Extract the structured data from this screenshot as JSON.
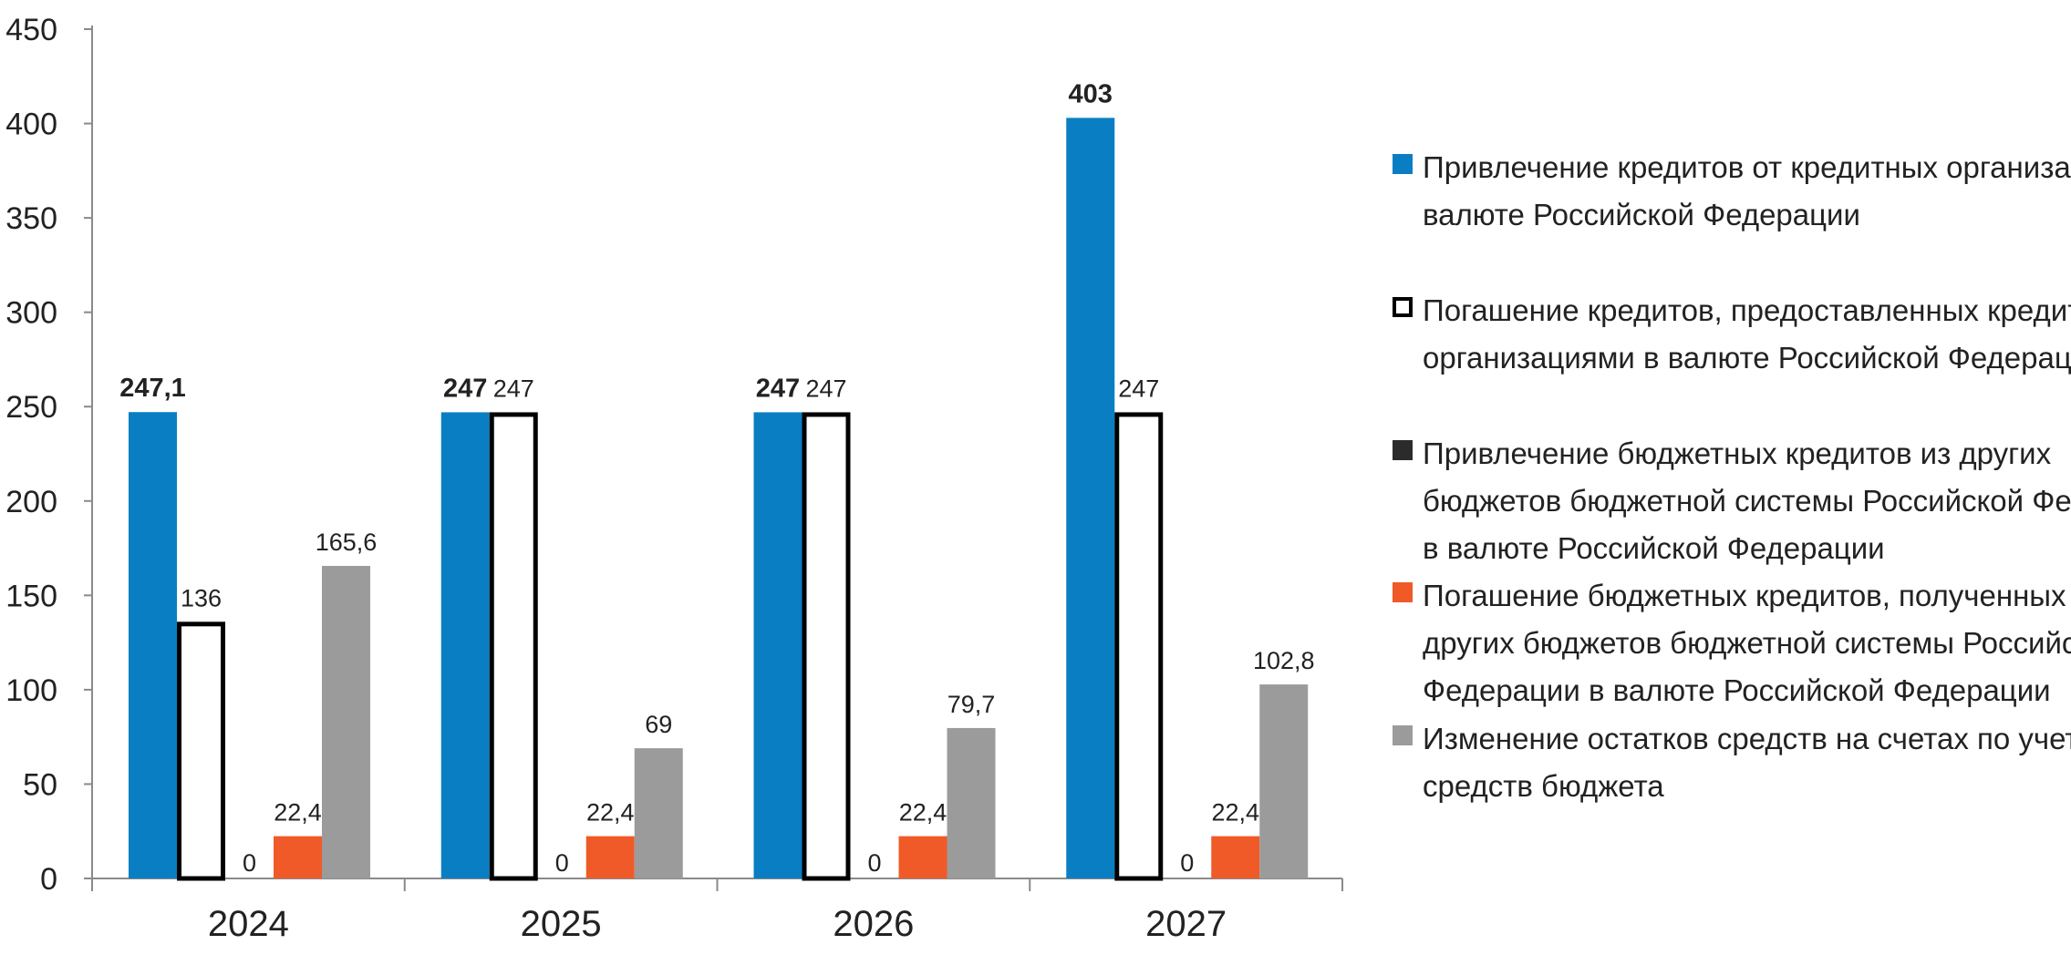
{
  "chart_data": {
    "type": "bar",
    "categories": [
      "2024",
      "2025",
      "2026",
      "2027"
    ],
    "ylim": [
      0,
      450
    ],
    "yticks": [
      0,
      50,
      100,
      150,
      200,
      250,
      300,
      350,
      400,
      450
    ],
    "ytick_labels": [
      "0",
      "50",
      "100",
      "150",
      "200",
      "250",
      "300",
      "350",
      "400",
      "450"
    ],
    "grid": false,
    "legend_position": "right",
    "series": [
      {
        "name": "Привлечение кредитов от кредитных организаций в валюте Российской Федерации",
        "legend_lines": [
          "Привлечение кредитов от кредитных организаций в",
          "валюте Российской Федерации"
        ],
        "color": "#0a7ec2",
        "style": "filled",
        "bold_labels": true,
        "values": [
          247.1,
          247,
          247,
          403
        ],
        "labels": [
          "247,1",
          "247",
          "247",
          "403"
        ]
      },
      {
        "name": "Погашение кредитов, предоставленных кредитными организациями в валюте Российской Федерации",
        "legend_lines": [
          "Погашение кредитов, предоставленных кредитными",
          "организациями в валюте Российской Федерации"
        ],
        "color": "#000000",
        "style": "outline",
        "bold_labels": false,
        "values": [
          136,
          247,
          247,
          247
        ],
        "labels": [
          "136",
          "247",
          "247",
          "247"
        ]
      },
      {
        "name": "Привлечение бюджетных кредитов из других бюджетов бюджетной системы Российской Федерации в валюте Российской Федерации",
        "legend_lines": [
          "Привлечение бюджетных кредитов из других",
          "бюджетов бюджетной системы Российской Федерации",
          "в валюте Российской Федерации"
        ],
        "color": "#2b2b2b",
        "style": "filled",
        "bold_labels": false,
        "values": [
          0,
          0,
          0,
          0
        ],
        "labels": [
          "0",
          "0",
          "0",
          "0"
        ]
      },
      {
        "name": "Погашение бюджетных кредитов, полученных из других бюджетов бюджетной системы Российской Федерации в валюте Российской Федерации",
        "legend_lines": [
          "Погашение бюджетных кредитов, полученных из",
          "других бюджетов бюджетной системы Российской",
          "Федерации в валюте Российской Федерации"
        ],
        "color": "#f05a28",
        "style": "filled",
        "bold_labels": false,
        "values": [
          22.4,
          22.4,
          22.4,
          22.4
        ],
        "labels": [
          "22,4",
          "22,4",
          "22,4",
          "22,4"
        ]
      },
      {
        "name": "Изменение остатков средств на счетах по учету средств бюджета",
        "legend_lines": [
          "Изменение остатков средств на счетах по учету",
          "средств бюджета"
        ],
        "color": "#9b9b9b",
        "style": "filled",
        "bold_labels": false,
        "values": [
          165.6,
          69,
          79.7,
          102.8
        ],
        "labels": [
          "165,6",
          "69",
          "79,7",
          "102,8"
        ]
      }
    ]
  }
}
